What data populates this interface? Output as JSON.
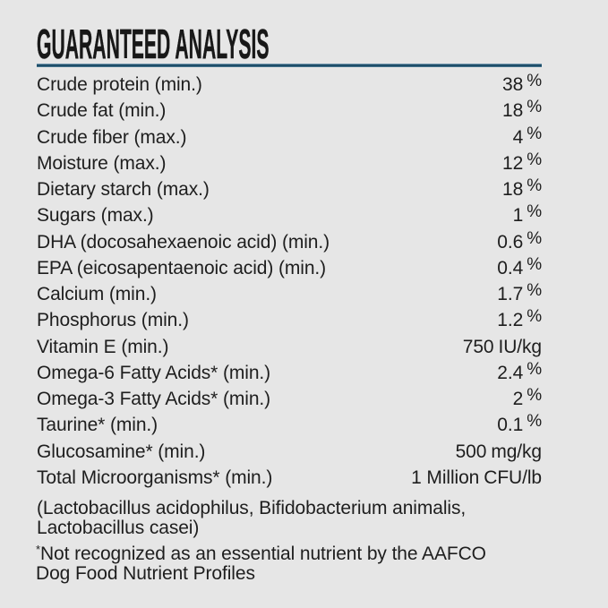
{
  "colors": {
    "background": "#e6e6e6",
    "text": "#1e1e1e",
    "rule": "#1f4e69"
  },
  "header": {
    "title": "GUARANTEED ANALYSIS"
  },
  "analysis": {
    "rows": [
      {
        "label": "Crude protein (min.)",
        "value": "38",
        "unit": "%"
      },
      {
        "label": "Crude fat (min.)",
        "value": "18",
        "unit": "%"
      },
      {
        "label": "Crude fiber (max.)",
        "value": "4",
        "unit": "%"
      },
      {
        "label": "Moisture (max.)",
        "value": "12",
        "unit": "%"
      },
      {
        "label": "Dietary starch (max.)",
        "value": "18",
        "unit": "%"
      },
      {
        "label": "Sugars (max.)",
        "value": "1",
        "unit": "%"
      },
      {
        "label": "DHA (docosahexaenoic acid) (min.)",
        "value": "0.6",
        "unit": "%"
      },
      {
        "label": "EPA (eicosapentaenoic acid) (min.)",
        "value": "0.4",
        "unit": "%"
      },
      {
        "label": "Calcium (min.)",
        "value": "1.7",
        "unit": "%"
      },
      {
        "label": "Phosphorus (min.)",
        "value": "1.2",
        "unit": "%"
      },
      {
        "label": "Vitamin E (min.)",
        "value": "750",
        "unit": "IU/kg"
      },
      {
        "label": "Omega-6 Fatty Acids* (min.)",
        "value": "2.4",
        "unit": "%"
      },
      {
        "label": "Omega-3 Fatty Acids* (min.)",
        "value": "2",
        "unit": "%"
      },
      {
        "label": "Taurine* (min.)",
        "value": "0.1",
        "unit": "%"
      },
      {
        "label": "Glucosamine* (min.)",
        "value": "500",
        "unit": "mg/kg"
      },
      {
        "label": "Total Microorganisms* (min.)",
        "value": "1 Million",
        "unit": "CFU/lb"
      }
    ],
    "note_lines": [
      "(Lactobacillus acidophilus, Bifidobacterium animalis,",
      "Lactobacillus casei)"
    ],
    "footnote_marker": "*",
    "footnote_lines": [
      "Not recognized as an essential nutrient by the AAFCO",
      "Dog Food Nutrient Profiles"
    ]
  }
}
